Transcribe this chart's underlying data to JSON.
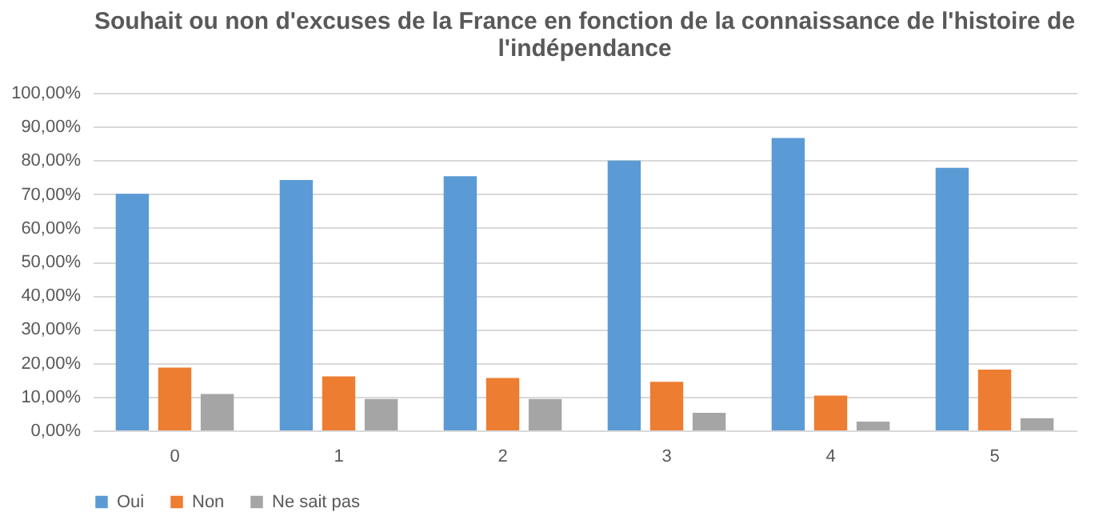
{
  "chart_data": {
    "type": "bar",
    "title": "Souhait ou non d'excuses de la France en fonction de la connaissance de l'histoire de l'indépendance",
    "categories": [
      "0",
      "1",
      "2",
      "3",
      "4",
      "5"
    ],
    "series": [
      {
        "name": "Oui",
        "color": "#5b9bd5",
        "values": [
          70.1,
          74.2,
          75.3,
          79.9,
          86.6,
          77.8
        ]
      },
      {
        "name": "Non",
        "color": "#ed7d31",
        "values": [
          18.6,
          16.0,
          15.5,
          14.4,
          10.3,
          18.0
        ]
      },
      {
        "name": "Ne sait pas",
        "color": "#a5a5a5",
        "values": [
          10.8,
          9.3,
          9.3,
          5.2,
          2.6,
          3.6
        ]
      }
    ],
    "ylim": [
      0,
      100
    ],
    "yticks": [
      {
        "value": 0,
        "label": "0,00%"
      },
      {
        "value": 10,
        "label": "10,00%"
      },
      {
        "value": 20,
        "label": "20,00%"
      },
      {
        "value": 30,
        "label": "30,00%"
      },
      {
        "value": 40,
        "label": "40,00%"
      },
      {
        "value": 50,
        "label": "50,00%"
      },
      {
        "value": 60,
        "label": "60,00%"
      },
      {
        "value": 70,
        "label": "70,00%"
      },
      {
        "value": 80,
        "label": "80,00%"
      },
      {
        "value": 90,
        "label": "90,00%"
      },
      {
        "value": 100,
        "label": "100,00%"
      }
    ],
    "grid": "y",
    "legend": "bottom"
  }
}
